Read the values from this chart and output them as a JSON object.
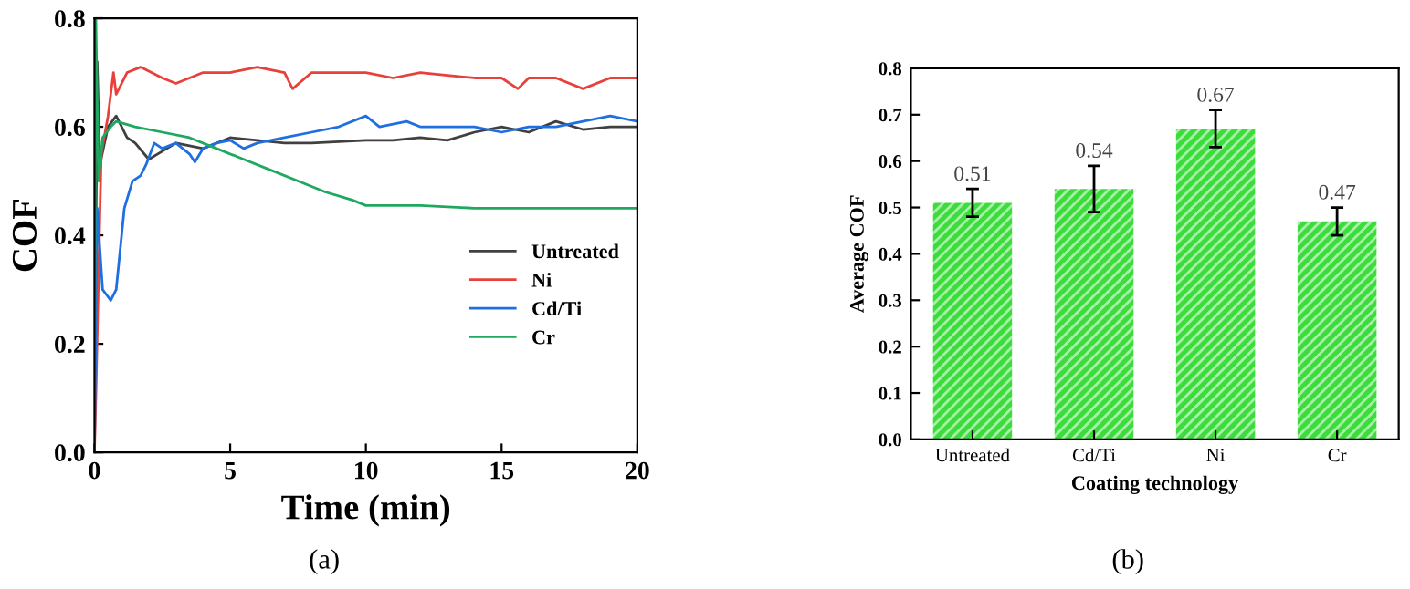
{
  "chart_data": [
    {
      "type": "line",
      "xlabel": "Time (min)",
      "ylabel": "COF",
      "annotations": [
        "(a)"
      ],
      "xlim": [
        0,
        20
      ],
      "ylim": [
        0,
        0.8
      ],
      "xticks": [
        0,
        5,
        10,
        15,
        20
      ],
      "yticks": [
        {
          "value": 0,
          "label": "0.0"
        },
        0.2,
        0.4,
        0.6,
        0.8
      ],
      "legend": "right",
      "grid": false,
      "series": [
        {
          "name": "Untreated",
          "color": "#404040",
          "x": [
            0,
            0.1,
            0.2,
            0.5,
            0.8,
            1.2,
            1.5,
            2,
            2.5,
            3,
            3.5,
            4,
            5,
            6,
            7,
            8,
            10,
            11,
            12,
            13,
            14,
            15,
            16,
            17,
            18,
            19,
            20
          ],
          "values": [
            0,
            0.72,
            0.53,
            0.6,
            0.62,
            0.58,
            0.57,
            0.54,
            0.555,
            0.57,
            0.565,
            0.56,
            0.58,
            0.575,
            0.57,
            0.57,
            0.575,
            0.575,
            0.58,
            0.575,
            0.59,
            0.6,
            0.59,
            0.61,
            0.595,
            0.6,
            0.6
          ]
        },
        {
          "name": "Ni",
          "color": "#e8403a",
          "x": [
            0,
            0.05,
            0.25,
            0.5,
            0.7,
            0.8,
            1.2,
            1.7,
            2.5,
            3,
            4,
            5,
            6,
            7,
            7.3,
            8,
            9,
            10,
            11,
            12,
            13,
            14,
            15,
            15.6,
            16,
            17,
            18,
            19,
            20
          ],
          "values": [
            0,
            0.1,
            0.55,
            0.62,
            0.7,
            0.66,
            0.7,
            0.71,
            0.69,
            0.68,
            0.7,
            0.7,
            0.71,
            0.7,
            0.67,
            0.7,
            0.7,
            0.7,
            0.69,
            0.7,
            0.695,
            0.69,
            0.69,
            0.67,
            0.69,
            0.69,
            0.67,
            0.69,
            0.69
          ]
        },
        {
          "name": "Cd/Ti",
          "color": "#1f6fe0",
          "x": [
            0,
            0.1,
            0.3,
            0.6,
            0.8,
            1.1,
            1.4,
            1.7,
            1.9,
            2.2,
            2.5,
            3,
            3.5,
            3.7,
            4,
            4.5,
            5,
            5.5,
            6,
            7,
            8,
            9,
            10,
            10.5,
            11.5,
            12,
            13,
            14,
            15,
            16,
            17,
            18,
            19,
            20
          ],
          "values": [
            0,
            0.45,
            0.3,
            0.28,
            0.3,
            0.45,
            0.5,
            0.51,
            0.53,
            0.57,
            0.56,
            0.57,
            0.55,
            0.535,
            0.56,
            0.57,
            0.575,
            0.56,
            0.57,
            0.58,
            0.59,
            0.6,
            0.62,
            0.6,
            0.61,
            0.6,
            0.6,
            0.6,
            0.59,
            0.6,
            0.6,
            0.61,
            0.62,
            0.61
          ]
        },
        {
          "name": "Cr",
          "color": "#1fa860",
          "x": [
            0,
            0.05,
            0.15,
            0.3,
            0.6,
            0.8,
            1.5,
            2.5,
            3.5,
            4.5,
            5.5,
            6.5,
            7.5,
            8.5,
            9.5,
            10,
            12,
            14,
            16,
            18,
            20
          ],
          "values": [
            0.1,
            0.8,
            0.5,
            0.58,
            0.6,
            0.61,
            0.6,
            0.59,
            0.58,
            0.56,
            0.54,
            0.52,
            0.5,
            0.48,
            0.465,
            0.455,
            0.455,
            0.45,
            0.45,
            0.45,
            0.45
          ]
        }
      ]
    },
    {
      "type": "bar",
      "xlabel": "Coating technology",
      "ylabel": "Average COF",
      "annotations": [
        "(b)"
      ],
      "categories": [
        "Untreated",
        "Cd/Ti",
        "Ni",
        "Cr"
      ],
      "ylim": [
        0,
        0.8
      ],
      "yticks": [
        {
          "value": 0,
          "label": "0.0"
        },
        0.1,
        0.2,
        0.3,
        0.4,
        0.5,
        0.6,
        0.7,
        0.8
      ],
      "grid": false,
      "data_labels": true,
      "series": [
        {
          "color": "#3ddc3d",
          "values": [
            0.51,
            0.54,
            0.67,
            0.47
          ],
          "errors": [
            0.03,
            0.05,
            0.04,
            0.03
          ]
        }
      ]
    }
  ]
}
